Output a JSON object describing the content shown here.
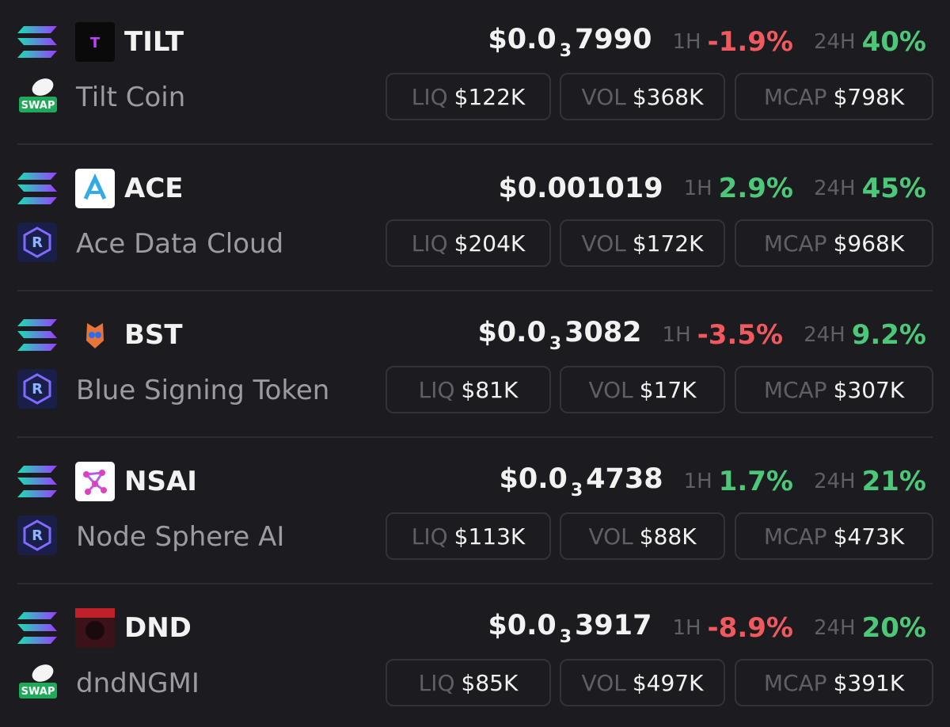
{
  "labels": {
    "h1": "1H",
    "h24": "24H",
    "liq": "LIQ",
    "vol": "VOL",
    "mcap": "MCAP"
  },
  "tokens": [
    {
      "symbol": "TILT",
      "name": "Tilt Coin",
      "dex": "SWAP",
      "price": {
        "prefix": "$0.0",
        "sub": "3",
        "rest": "7990"
      },
      "change_1h": "-1.9%",
      "change_24h": "40%",
      "liq": "$122K",
      "vol": "$368K",
      "mcap": "$798K"
    },
    {
      "symbol": "ACE",
      "name": "Ace Data Cloud",
      "price": {
        "text": "$0.001019"
      },
      "change_1h": "2.9%",
      "change_24h": "45%",
      "liq": "$204K",
      "vol": "$172K",
      "mcap": "$968K"
    },
    {
      "symbol": "BST",
      "name": "Blue Signing Token",
      "price": {
        "prefix": "$0.0",
        "sub": "3",
        "rest": "3082"
      },
      "change_1h": "-3.5%",
      "change_24h": "9.2%",
      "liq": "$81K",
      "vol": "$17K",
      "mcap": "$307K"
    },
    {
      "symbol": "NSAI",
      "name": "Node Sphere AI",
      "price": {
        "prefix": "$0.0",
        "sub": "3",
        "rest": "4738"
      },
      "change_1h": "1.7%",
      "change_24h": "21%",
      "liq": "$113K",
      "vol": "$88K",
      "mcap": "$473K"
    },
    {
      "symbol": "DND",
      "name": "dndNGMI",
      "dex": "SWAP",
      "price": {
        "prefix": "$0.0",
        "sub": "3",
        "rest": "3917"
      },
      "change_1h": "-8.9%",
      "change_24h": "20%",
      "liq": "$85K",
      "vol": "$497K",
      "mcap": "$391K"
    }
  ]
}
